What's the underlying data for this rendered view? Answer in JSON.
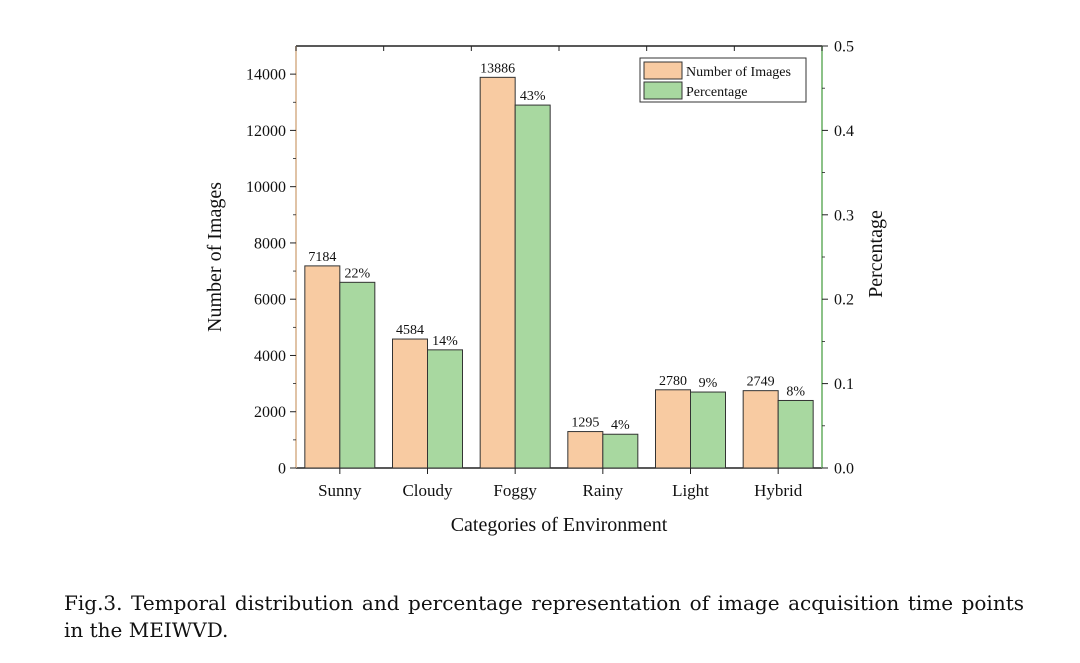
{
  "chart_data": {
    "type": "bar",
    "categories": [
      "Sunny",
      "Cloudy",
      "Foggy",
      "Rainy",
      "Light",
      "Hybrid"
    ],
    "series": [
      {
        "name": "Number of Images",
        "axis": "left",
        "color": "#f8cba2",
        "values": [
          7184,
          4584,
          13886,
          1295,
          2780,
          2749
        ],
        "labels": [
          "7184",
          "4584",
          "13886",
          "1295",
          "2780",
          "2749"
        ]
      },
      {
        "name": "Percentage",
        "axis": "right",
        "color": "#a8d8a0",
        "values": [
          0.22,
          0.14,
          0.43,
          0.04,
          0.09,
          0.08
        ],
        "labels": [
          "22%",
          "14%",
          "43%",
          "4%",
          "9%",
          "8%"
        ]
      }
    ],
    "xlabel": "Categories of Environment",
    "ylabel": "Number of Images",
    "y2label": "Percentage",
    "ylim": [
      0,
      15000
    ],
    "y2lim": [
      0,
      0.5
    ],
    "yticks": [
      0,
      2000,
      4000,
      6000,
      8000,
      10000,
      12000,
      14000
    ],
    "y2ticks": [
      0.0,
      0.1,
      0.2,
      0.3,
      0.4,
      0.5
    ],
    "y2tick_labels": [
      "0.0",
      "0.1",
      "0.2",
      "0.3",
      "0.4",
      "0.5"
    ],
    "left_axis_color": "#d9b48f",
    "right_axis_color": "#6fb36a",
    "legend_position": "top-right",
    "grid": false
  },
  "caption": {
    "label": "Fig.3.",
    "text": "Temporal distribution and percentage representation of image acquisition time points in the MEIWVD."
  }
}
